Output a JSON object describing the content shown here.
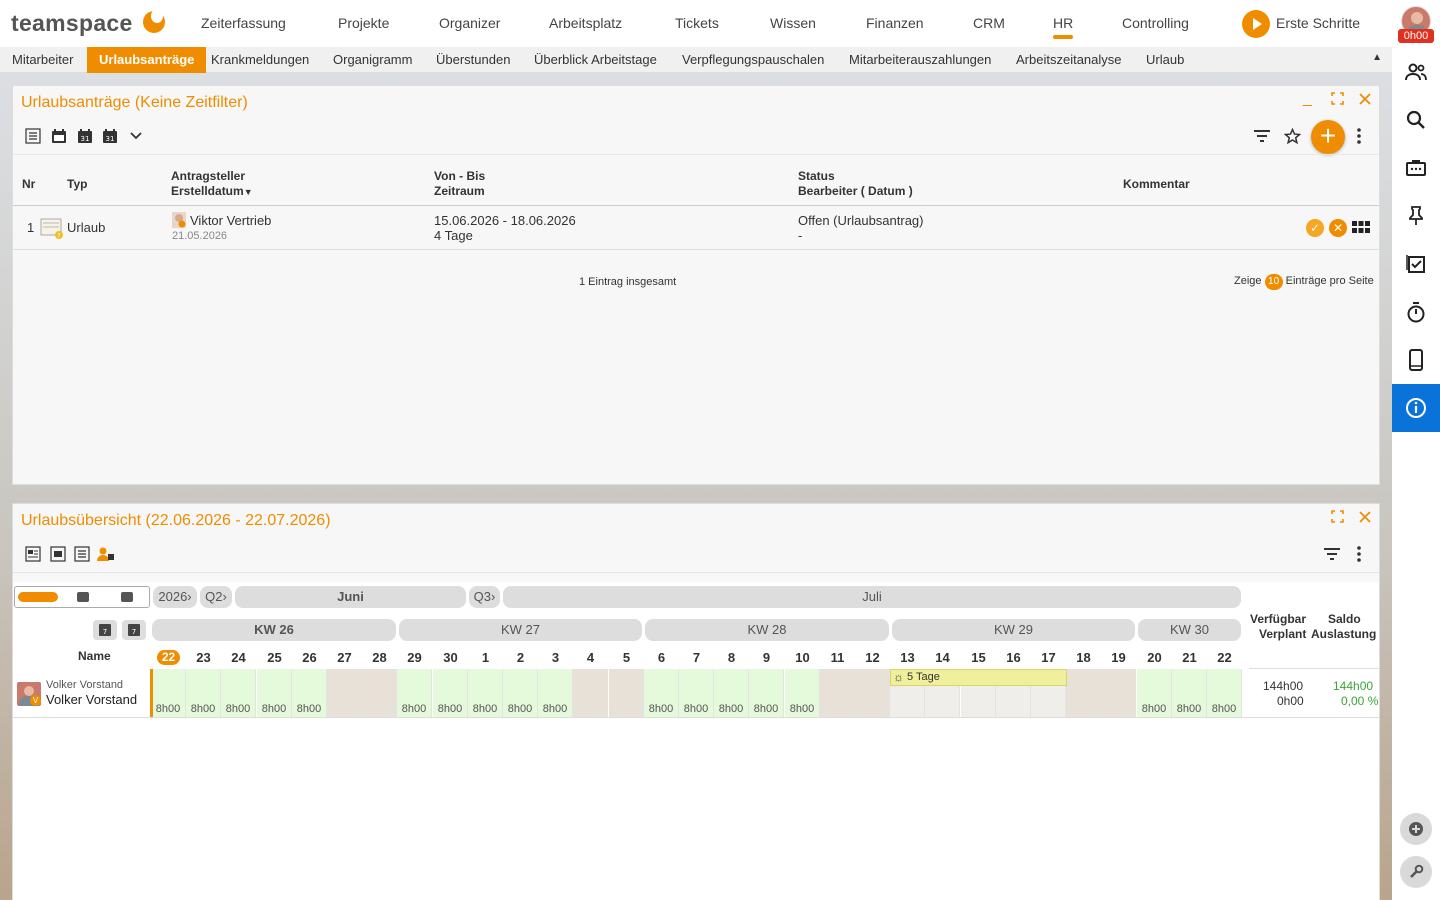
{
  "app": {
    "logo": "teamspace",
    "nav": [
      "Zeiterfassung",
      "Projekte",
      "Organizer",
      "Arbeitsplatz",
      "Tickets",
      "Wissen",
      "Finanzen",
      "CRM",
      "HR",
      "Controlling"
    ],
    "nav_active": "HR",
    "start_label": "Erste Schritte",
    "time_badge": "0h00",
    "accent": "#f08c00"
  },
  "subnav": {
    "items": [
      "Mitarbeiter",
      "Urlaubsanträge",
      "Krankmeldungen",
      "Organigramm",
      "Überstunden",
      "Überblick Arbeitstage",
      "Verpflegungspauschalen",
      "Mitarbeiterauszahlungen",
      "Arbeitszeitanalyse",
      "Urlaub"
    ],
    "active": "Urlaubsanträge",
    "collapse_icon": "▲"
  },
  "requests": {
    "title": "Urlaubsanträge (Keine Zeitfilter)",
    "headers": {
      "nr": "Nr",
      "typ": "Typ",
      "antragsteller": "Antragsteller",
      "erstelldatum": "Erstelldatum",
      "von_bis": "Von - Bis",
      "zeitraum": "Zeitraum",
      "status": "Status",
      "bearbeiter": "Bearbeiter ( Datum )",
      "kommentar": "Kommentar"
    },
    "rows": [
      {
        "nr": "1",
        "typ": "Urlaub",
        "antragsteller": "Viktor Vertrieb",
        "erstelldatum": "21.05.2026",
        "von_bis": "15.06.2026 - 18.06.2026",
        "zeitraum": "4 Tage",
        "status": "Offen (Urlaubsantrag)",
        "bearbeiter": "-"
      }
    ],
    "total": "1 Eintrag insgesamt",
    "page_prefix": "Zeige",
    "page_size": "10",
    "page_suffix": "Einträge pro Seite"
  },
  "overview": {
    "title": "Urlaubsübersicht (22.06.2026 - 22.07.2026)",
    "year": "2026›",
    "q2": "Q2›",
    "q3": "Q3›",
    "month1": "Juni",
    "month2": "Juli",
    "weeks": [
      "KW 26",
      "KW 27",
      "KW 28",
      "KW 29",
      "KW 30"
    ],
    "name_header": "Name",
    "days": [
      "22",
      "23",
      "24",
      "25",
      "26",
      "27",
      "28",
      "29",
      "30",
      "1",
      "2",
      "3",
      "4",
      "5",
      "6",
      "7",
      "8",
      "9",
      "10",
      "11",
      "12",
      "13",
      "14",
      "15",
      "16",
      "17",
      "18",
      "19",
      "20",
      "21",
      "22"
    ],
    "day_types": [
      "w",
      "w",
      "w",
      "w",
      "w",
      "e",
      "e",
      "w",
      "w",
      "w",
      "w",
      "w",
      "e",
      "e",
      "w",
      "w",
      "w",
      "w",
      "w",
      "e",
      "e",
      "p",
      "p",
      "p",
      "p",
      "p",
      "e",
      "e",
      "w",
      "w",
      "w"
    ],
    "hours_label": "8h00",
    "right_headers": {
      "verfuegbar": "Verfügbar",
      "saldo": "Saldo",
      "verplant": "Verplant",
      "auslastung": "Auslastung"
    },
    "employee": {
      "small_name": "Volker Vorstand",
      "name": "Volker Vorstand",
      "verfuegbar": "144h00",
      "verplant": "0h00",
      "saldo": "144h00",
      "auslastung": "0,00 %"
    },
    "vacation_label": "5 Tage",
    "vacation_start_day": 21,
    "vacation_days": 5
  }
}
